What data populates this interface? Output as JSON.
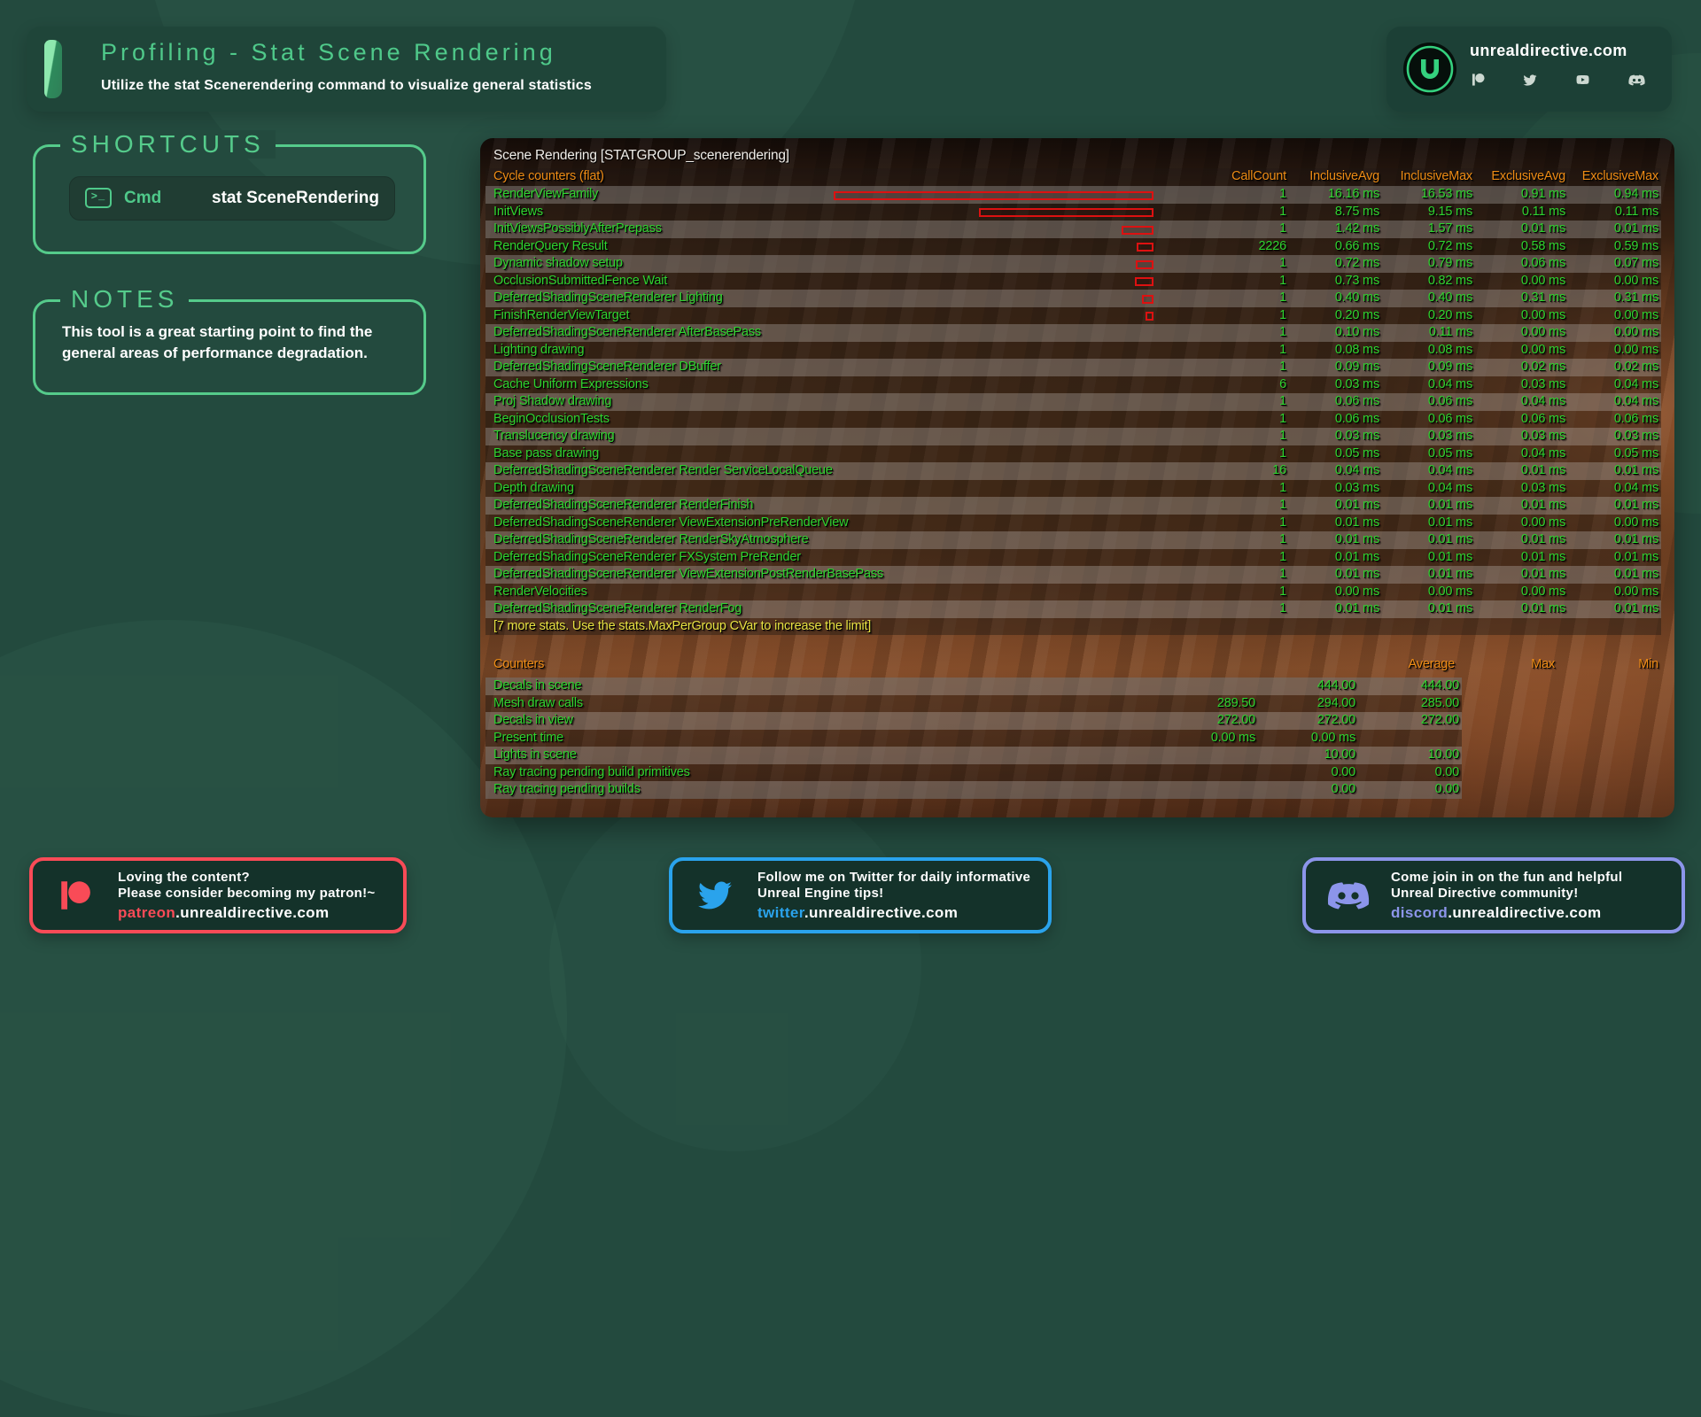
{
  "header": {
    "title": "Profiling - Stat Scene Rendering",
    "subtitle": "Utilize the stat Scenerendering command to visualize general statistics"
  },
  "branding": {
    "site": "unrealdirective.com",
    "social_icons": [
      "patreon",
      "twitter",
      "youtube",
      "discord"
    ]
  },
  "shortcuts": {
    "title": "SHORTCUTS",
    "terminal_icon_glyph": ">_",
    "items": [
      {
        "key": "Cmd",
        "command": "stat SceneRendering"
      }
    ]
  },
  "notes": {
    "title": "NOTES",
    "text": "This tool is a great starting point to find the general areas of performance degradation."
  },
  "stat_panel": {
    "title": "Scene Rendering [STATGROUP_scenerendering]",
    "cycle_counters": {
      "label": "Cycle counters (flat)",
      "columns": [
        "CallCount",
        "InclusiveAvg",
        "InclusiveMax",
        "ExclusiveAvg",
        "ExclusiveMax"
      ],
      "rows": [
        {
          "name": "RenderViewFamily",
          "call_count": "1",
          "inclusive_avg": "16.16 ms",
          "inclusive_max": "16.53 ms",
          "exclusive_avg": "0.91 ms",
          "exclusive_max": "0.94 ms",
          "bar": 357
        },
        {
          "name": "InitViews",
          "call_count": "1",
          "inclusive_avg": "8.75 ms",
          "inclusive_max": "9.15 ms",
          "exclusive_avg": "0.11 ms",
          "exclusive_max": "0.11 ms",
          "bar": 193
        },
        {
          "name": "InitViewsPossiblyAfterPrepass",
          "call_count": "1",
          "inclusive_avg": "1.42 ms",
          "inclusive_max": "1.57 ms",
          "exclusive_avg": "0.01 ms",
          "exclusive_max": "0.01 ms",
          "bar": 32
        },
        {
          "name": "RenderQuery Result",
          "call_count": "2226",
          "inclusive_avg": "0.66 ms",
          "inclusive_max": "0.72 ms",
          "exclusive_avg": "0.58 ms",
          "exclusive_max": "0.59 ms",
          "bar": 15
        },
        {
          "name": "Dynamic shadow setup",
          "call_count": "1",
          "inclusive_avg": "0.72 ms",
          "inclusive_max": "0.79 ms",
          "exclusive_avg": "0.06 ms",
          "exclusive_max": "0.07 ms",
          "bar": 16
        },
        {
          "name": "OcclusionSubmittedFence Wait",
          "call_count": "1",
          "inclusive_avg": "0.73 ms",
          "inclusive_max": "0.82 ms",
          "exclusive_avg": "0.00 ms",
          "exclusive_max": "0.00 ms",
          "bar": 17
        },
        {
          "name": "DeferredShadingSceneRenderer Lighting",
          "call_count": "1",
          "inclusive_avg": "0.40 ms",
          "inclusive_max": "0.40 ms",
          "exclusive_avg": "0.31 ms",
          "exclusive_max": "0.31 ms",
          "bar": 9
        },
        {
          "name": "FinishRenderViewTarget",
          "call_count": "1",
          "inclusive_avg": "0.20 ms",
          "inclusive_max": "0.20 ms",
          "exclusive_avg": "0.00 ms",
          "exclusive_max": "0.00 ms",
          "bar": 5
        },
        {
          "name": "DeferredShadingSceneRenderer AfterBasePass",
          "call_count": "1",
          "inclusive_avg": "0.10 ms",
          "inclusive_max": "0.11 ms",
          "exclusive_avg": "0.00 ms",
          "exclusive_max": "0.00 ms",
          "bar": 0
        },
        {
          "name": "Lighting drawing",
          "call_count": "1",
          "inclusive_avg": "0.08 ms",
          "inclusive_max": "0.08 ms",
          "exclusive_avg": "0.00 ms",
          "exclusive_max": "0.00 ms",
          "bar": 0
        },
        {
          "name": "DeferredShadingSceneRenderer DBuffer",
          "call_count": "1",
          "inclusive_avg": "0.09 ms",
          "inclusive_max": "0.09 ms",
          "exclusive_avg": "0.02 ms",
          "exclusive_max": "0.02 ms",
          "bar": 0
        },
        {
          "name": "Cache Uniform Expressions",
          "call_count": "6",
          "inclusive_avg": "0.03 ms",
          "inclusive_max": "0.04 ms",
          "exclusive_avg": "0.03 ms",
          "exclusive_max": "0.04 ms",
          "bar": 0
        },
        {
          "name": "Proj Shadow drawing",
          "call_count": "1",
          "inclusive_avg": "0.06 ms",
          "inclusive_max": "0.06 ms",
          "exclusive_avg": "0.04 ms",
          "exclusive_max": "0.04 ms",
          "bar": 0
        },
        {
          "name": "BeginOcclusionTests",
          "call_count": "1",
          "inclusive_avg": "0.06 ms",
          "inclusive_max": "0.06 ms",
          "exclusive_avg": "0.06 ms",
          "exclusive_max": "0.06 ms",
          "bar": 0
        },
        {
          "name": "Translucency drawing",
          "call_count": "1",
          "inclusive_avg": "0.03 ms",
          "inclusive_max": "0.03 ms",
          "exclusive_avg": "0.03 ms",
          "exclusive_max": "0.03 ms",
          "bar": 0
        },
        {
          "name": "Base pass drawing",
          "call_count": "1",
          "inclusive_avg": "0.05 ms",
          "inclusive_max": "0.05 ms",
          "exclusive_avg": "0.04 ms",
          "exclusive_max": "0.05 ms",
          "bar": 0
        },
        {
          "name": "DeferredShadingSceneRenderer Render ServiceLocalQueue",
          "call_count": "16",
          "inclusive_avg": "0.04 ms",
          "inclusive_max": "0.04 ms",
          "exclusive_avg": "0.01 ms",
          "exclusive_max": "0.01 ms",
          "bar": 0
        },
        {
          "name": "Depth drawing",
          "call_count": "1",
          "inclusive_avg": "0.03 ms",
          "inclusive_max": "0.04 ms",
          "exclusive_avg": "0.03 ms",
          "exclusive_max": "0.04 ms",
          "bar": 0
        },
        {
          "name": "DeferredShadingSceneRenderer RenderFinish",
          "call_count": "1",
          "inclusive_avg": "0.01 ms",
          "inclusive_max": "0.01 ms",
          "exclusive_avg": "0.01 ms",
          "exclusive_max": "0.01 ms",
          "bar": 0
        },
        {
          "name": "DeferredShadingSceneRenderer ViewExtensionPreRenderView",
          "call_count": "1",
          "inclusive_avg": "0.01 ms",
          "inclusive_max": "0.01 ms",
          "exclusive_avg": "0.00 ms",
          "exclusive_max": "0.00 ms",
          "bar": 0
        },
        {
          "name": "DeferredShadingSceneRenderer RenderSkyAtmosphere",
          "call_count": "1",
          "inclusive_avg": "0.01 ms",
          "inclusive_max": "0.01 ms",
          "exclusive_avg": "0.01 ms",
          "exclusive_max": "0.01 ms",
          "bar": 0
        },
        {
          "name": "DeferredShadingSceneRenderer FXSystem PreRender",
          "call_count": "1",
          "inclusive_avg": "0.01 ms",
          "inclusive_max": "0.01 ms",
          "exclusive_avg": "0.01 ms",
          "exclusive_max": "0.01 ms",
          "bar": 0
        },
        {
          "name": "DeferredShadingSceneRenderer ViewExtensionPostRenderBasePass",
          "call_count": "1",
          "inclusive_avg": "0.01 ms",
          "inclusive_max": "0.01 ms",
          "exclusive_avg": "0.01 ms",
          "exclusive_max": "0.01 ms",
          "bar": 0
        },
        {
          "name": "RenderVelocities",
          "call_count": "1",
          "inclusive_avg": "0.00 ms",
          "inclusive_max": "0.00 ms",
          "exclusive_avg": "0.00 ms",
          "exclusive_max": "0.00 ms",
          "bar": 0
        },
        {
          "name": "DeferredShadingSceneRenderer RenderFog",
          "call_count": "1",
          "inclusive_avg": "0.01 ms",
          "inclusive_max": "0.01 ms",
          "exclusive_avg": "0.01 ms",
          "exclusive_max": "0.01 ms",
          "bar": 0
        }
      ],
      "footer_note": "[7 more stats. Use the stats.MaxPerGroup CVar to increase the limit]"
    },
    "counters": {
      "label": "Counters",
      "columns": [
        "Average",
        "Max",
        "Min"
      ],
      "rows": [
        {
          "name": "Decals in scene",
          "average": "",
          "max": "444.00",
          "min": "444.00"
        },
        {
          "name": "Mesh draw calls",
          "average": "289.50",
          "max": "294.00",
          "min": "285.00"
        },
        {
          "name": "Decals in view",
          "average": "272.00",
          "max": "272.00",
          "min": "272.00"
        },
        {
          "name": "Present time",
          "average": "0.00 ms",
          "max": "0.00 ms",
          "min": ""
        },
        {
          "name": "Lights in scene",
          "average": "",
          "max": "10.00",
          "min": "10.00"
        },
        {
          "name": "Ray tracing pending build primitives",
          "average": "",
          "max": "0.00",
          "min": "0.00"
        },
        {
          "name": "Ray tracing pending builds",
          "average": "",
          "max": "0.00",
          "min": "0.00"
        }
      ]
    },
    "colors": {
      "stat_green": "#2fd32f",
      "stat_orange": "#ee8c15",
      "stat_yellow": "#e8e243",
      "bar_red": "#dd1111"
    }
  },
  "footer_cards": [
    {
      "id": "patreon",
      "line1": "Loving the content?",
      "line2": "Please consider becoming my patron!~",
      "link_prefix": "patreon",
      "link_suffix": ".unrealdirective.com",
      "accent": "#f94b57"
    },
    {
      "id": "twitter",
      "line1": "Follow me on Twitter for daily informative",
      "line2": "Unreal Engine tips!",
      "link_prefix": "twitter",
      "link_suffix": ".unrealdirective.com",
      "accent": "#2aa3ec"
    },
    {
      "id": "discord",
      "line1": "Come join in on the fun and helpful",
      "line2": "Unreal Directive community!",
      "link_prefix": "discord",
      "link_suffix": ".unrealdirective.com",
      "accent": "#8c95ea"
    }
  ],
  "theme": {
    "accent_green": "#55cb8b",
    "background": "#234a3e"
  }
}
